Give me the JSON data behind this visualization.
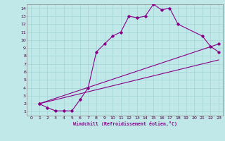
{
  "xlabel": "Windchill (Refroidissement éolien,°C)",
  "bg_color": "#c0e8e8",
  "line_color": "#880088",
  "grid_color": "#a8d8d8",
  "xlim": [
    -0.5,
    23.5
  ],
  "ylim": [
    0.5,
    14.5
  ],
  "xticks": [
    0,
    1,
    2,
    3,
    4,
    5,
    6,
    7,
    8,
    9,
    10,
    11,
    12,
    13,
    14,
    15,
    16,
    17,
    18,
    19,
    20,
    21,
    22,
    23
  ],
  "yticks": [
    1,
    2,
    3,
    4,
    5,
    6,
    7,
    8,
    9,
    10,
    11,
    12,
    13,
    14
  ],
  "line1_x": [
    1,
    2,
    3,
    4,
    5,
    6,
    7,
    8,
    9,
    10,
    11,
    12,
    13,
    14,
    15,
    16,
    17,
    18,
    21,
    22,
    23
  ],
  "line1_y": [
    2.0,
    1.5,
    1.1,
    1.1,
    1.1,
    2.5,
    4.0,
    8.5,
    9.5,
    10.5,
    11.0,
    13.0,
    12.8,
    13.0,
    14.5,
    13.8,
    14.0,
    12.0,
    10.5,
    9.2,
    8.5
  ],
  "line2_x": [
    1,
    23
  ],
  "line2_y": [
    2.0,
    9.5
  ],
  "line3_x": [
    1,
    23
  ],
  "line3_y": [
    2.0,
    7.5
  ]
}
